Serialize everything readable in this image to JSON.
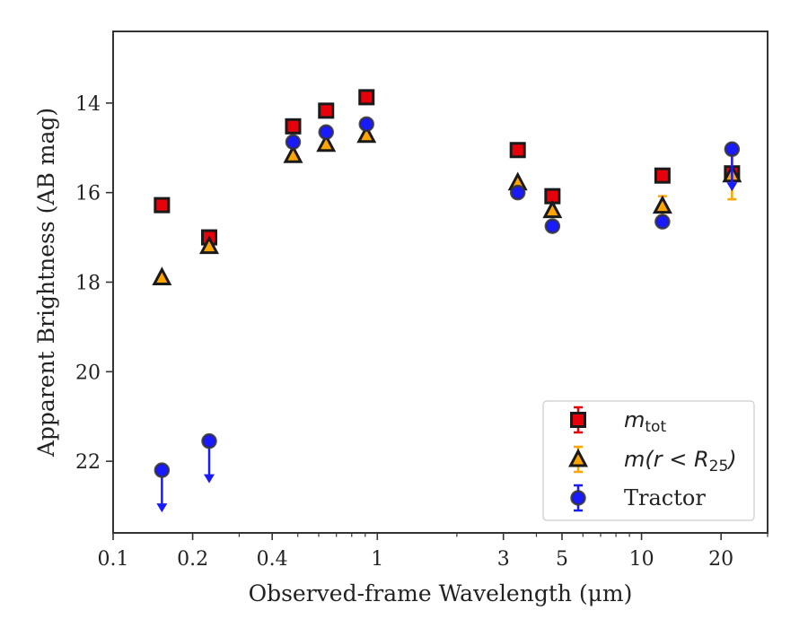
{
  "chart_data": {
    "type": "scatter",
    "xlabel": "Observed-frame Wavelength (μm)",
    "ylabel": "Apparent Brightness (AB mag)",
    "xscale": "log",
    "xlim": [
      0.1,
      30
    ],
    "ylim": [
      23.6,
      12.4
    ],
    "y_inverted": true,
    "x_ticks": [
      {
        "value": 0.1,
        "label": "0.1"
      },
      {
        "value": 0.2,
        "label": "0.2"
      },
      {
        "value": 0.4,
        "label": "0.4"
      },
      {
        "value": 1,
        "label": "1"
      },
      {
        "value": 3,
        "label": "3"
      },
      {
        "value": 5,
        "label": "5"
      },
      {
        "value": 10,
        "label": "10"
      },
      {
        "value": 20,
        "label": "20"
      }
    ],
    "x_minor_ticks": [
      0.3,
      0.5,
      0.6,
      0.7,
      0.8,
      0.9,
      2,
      4,
      6,
      7,
      8,
      9,
      30
    ],
    "y_ticks": [
      14,
      16,
      18,
      20,
      22
    ],
    "grid": false,
    "legend_position": "lower-right",
    "series": [
      {
        "key": "mtot",
        "legend_main": "m",
        "legend_sub": "tot",
        "marker": "square",
        "color": "#e8000b",
        "edge": "#1a1a1a",
        "points": [
          {
            "x": 0.153,
            "y": 16.28
          },
          {
            "x": 0.231,
            "y": 17.0
          },
          {
            "x": 0.48,
            "y": 14.52
          },
          {
            "x": 0.64,
            "y": 14.17
          },
          {
            "x": 0.91,
            "y": 13.87
          },
          {
            "x": 3.4,
            "y": 15.05
          },
          {
            "x": 4.6,
            "y": 16.08
          },
          {
            "x": 12.0,
            "y": 15.62
          },
          {
            "x": 22.0,
            "y": 15.57
          }
        ]
      },
      {
        "key": "mr25",
        "legend_main": "m(r < R",
        "legend_sub": "25",
        "legend_close": ")",
        "marker": "triangle",
        "color": "#ffa500",
        "edge": "#1a1a1a",
        "points": [
          {
            "x": 0.153,
            "y": 17.9
          },
          {
            "x": 0.231,
            "y": 17.2
          },
          {
            "x": 0.48,
            "y": 15.17
          },
          {
            "x": 0.64,
            "y": 14.92
          },
          {
            "x": 0.91,
            "y": 14.72
          },
          {
            "x": 3.4,
            "y": 15.78
          },
          {
            "x": 4.6,
            "y": 16.4
          },
          {
            "x": 12.0,
            "y": 16.3,
            "err": 0.22
          },
          {
            "x": 22.0,
            "y": 15.6,
            "err": 0.55
          }
        ]
      },
      {
        "key": "tractor",
        "legend_main": "Tractor",
        "marker": "circle",
        "color": "#1a1aff",
        "edge": "#333333",
        "points": [
          {
            "x": 0.153,
            "y": 22.2,
            "upper_limit": true
          },
          {
            "x": 0.231,
            "y": 21.55,
            "upper_limit": true
          },
          {
            "x": 0.48,
            "y": 14.87
          },
          {
            "x": 0.64,
            "y": 14.65
          },
          {
            "x": 0.91,
            "y": 14.47
          },
          {
            "x": 3.4,
            "y": 16.0
          },
          {
            "x": 4.6,
            "y": 16.75
          },
          {
            "x": 12.0,
            "y": 16.65
          },
          {
            "x": 22.0,
            "y": 15.03,
            "upper_limit": true
          }
        ]
      }
    ]
  }
}
